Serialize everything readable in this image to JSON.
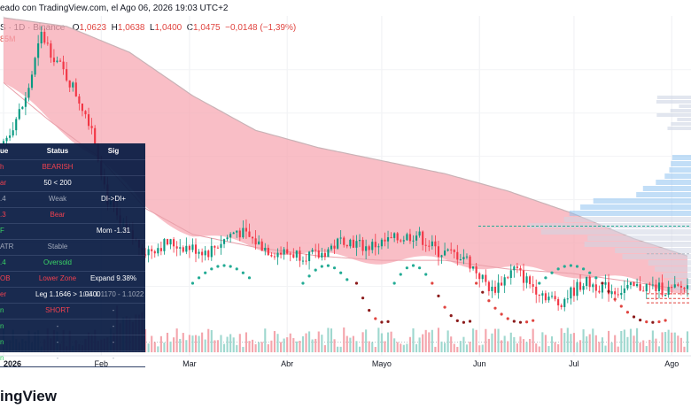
{
  "header": {
    "attribution": "eado con TradingView.com, el Ago 06, 2026 19:03 UTC+2"
  },
  "legend": {
    "symbol": "S · 1D · Binance",
    "open_label": "O",
    "open": "1,0623",
    "high_label": "H",
    "high": "1,0638",
    "low_label": "L",
    "low": "1,0400",
    "close_label": "C",
    "close": "1,0475",
    "change": "−0,0148 (−1,39%)",
    "volume": "85M"
  },
  "brand": "ingView",
  "colors": {
    "up": "#089981",
    "down": "#f23645",
    "cloud": "#f7a8b3",
    "cloud_edge": "#c9b2b6",
    "table_bg": "#0b1d45",
    "vol_up": "#9fd8cf",
    "vol_down": "#f4a5ac",
    "dot_green": "#22ab94",
    "dot_red": "#e0443f",
    "dot_dark": "#8b1a1a",
    "profile_blue": "#8fc3f0",
    "profile_gray": "#cfd6e4",
    "table_red": "#f23645",
    "table_green": "#2ed15c",
    "table_white": "#ffffff",
    "table_gray": "#9aa3b5"
  },
  "table": {
    "header": [
      "ue",
      "Status",
      "Sig"
    ],
    "rows": [
      {
        "c1": "h",
        "c2": "BEARISH",
        "c3": "",
        "col1": "red",
        "col2": "red",
        "col3": "white"
      },
      {
        "c1": "ar",
        "c2": "50 < 200",
        "c3": "",
        "col1": "red",
        "col2": "white",
        "col3": "white"
      },
      {
        "c1": ".4",
        "c2": "Weak",
        "c3": "DI->DI+",
        "col1": "gray",
        "col2": "gray",
        "col3": "white"
      },
      {
        "c1": ".3",
        "c2": "Bear",
        "c3": "",
        "col1": "red",
        "col2": "red",
        "col3": "white"
      },
      {
        "c1": "F",
        "c2": "",
        "c3": "Mom -1.31",
        "col1": "green",
        "col2": "white",
        "col3": "white"
      },
      {
        "c1": "ATR",
        "c2": "Stable",
        "c3": "",
        "col1": "gray",
        "col2": "gray",
        "col3": "white"
      },
      {
        "c1": ".4",
        "c2": "Oversold",
        "c3": "",
        "col1": "green",
        "col2": "green",
        "col3": "white"
      },
      {
        "c1": "OB",
        "c2": "Lower Zone",
        "c3": "Expand 9.38%",
        "col1": "red",
        "col2": "red",
        "col3": "white"
      },
      {
        "c1": "er",
        "c2": "Leg 1.1646 > 1.0400",
        "c3": "GZ 1.1170 - 1.1022",
        "col1": "red",
        "col2": "white",
        "col3": "gray"
      },
      {
        "c1": "n",
        "c2": "SHORT",
        "c3": "-",
        "col1": "green",
        "col2": "red",
        "col3": "gray"
      },
      {
        "c1": "n",
        "c2": "-",
        "c3": "-",
        "col1": "green",
        "col2": "gray",
        "col3": "gray"
      },
      {
        "c1": "n",
        "c2": "-",
        "c3": "-",
        "col1": "green",
        "col2": "gray",
        "col3": "gray"
      },
      {
        "c1": "n",
        "c2": "-",
        "c3": "-",
        "col1": "green",
        "col2": "gray",
        "col3": "gray"
      }
    ]
  },
  "chart_data": {
    "type": "candlestick",
    "title": "",
    "xlabel": "",
    "ylabel": "",
    "x_ticks": [
      "2026",
      "Feb",
      "Mar",
      "Abr",
      "Mayo",
      "Jun",
      "Jul",
      "Ago"
    ],
    "y_range_price": [
      0.95,
      1.62
    ],
    "y_axis_labels": "",
    "days": 218,
    "tick_day_index": [
      0,
      31,
      59,
      90,
      120,
      151,
      181,
      212
    ],
    "price_keyframes": [
      [
        0,
        1.33
      ],
      [
        7,
        1.43
      ],
      [
        12,
        1.58
      ],
      [
        16,
        1.53
      ],
      [
        22,
        1.46
      ],
      [
        28,
        1.37
      ],
      [
        33,
        1.2
      ],
      [
        37,
        1.14
      ],
      [
        45,
        1.08
      ],
      [
        52,
        1.1
      ],
      [
        65,
        1.08
      ],
      [
        74,
        1.13
      ],
      [
        85,
        1.08
      ],
      [
        100,
        1.07
      ],
      [
        108,
        1.11
      ],
      [
        115,
        1.09
      ],
      [
        125,
        1.11
      ],
      [
        131,
        1.12
      ],
      [
        138,
        1.08
      ],
      [
        146,
        1.07
      ],
      [
        155,
        0.99
      ],
      [
        162,
        1.04
      ],
      [
        168,
        1.0
      ],
      [
        176,
        0.96
      ],
      [
        184,
        1.01
      ],
      [
        194,
        0.99
      ],
      [
        204,
        1.0
      ],
      [
        212,
        0.99
      ],
      [
        217,
        1.0
      ]
    ],
    "cloud_upper_keyframes": [
      [
        0,
        1.62
      ],
      [
        20,
        1.6
      ],
      [
        40,
        1.54
      ],
      [
        60,
        1.44
      ],
      [
        80,
        1.36
      ],
      [
        100,
        1.32
      ],
      [
        120,
        1.29
      ],
      [
        140,
        1.26
      ],
      [
        160,
        1.22
      ],
      [
        180,
        1.17
      ],
      [
        200,
        1.11
      ],
      [
        217,
        1.07
      ]
    ],
    "cloud_lower_keyframes": [
      [
        0,
        1.47
      ],
      [
        15,
        1.38
      ],
      [
        30,
        1.3
      ],
      [
        45,
        1.18
      ],
      [
        60,
        1.12
      ],
      [
        80,
        1.09
      ],
      [
        100,
        1.07
      ],
      [
        120,
        1.06
      ],
      [
        140,
        1.06
      ],
      [
        160,
        1.04
      ],
      [
        180,
        1.03
      ],
      [
        200,
        1.01
      ],
      [
        217,
        0.99
      ]
    ],
    "horizontal_levels": [
      1.139,
      1.075,
      0.983,
      0.972,
      0.962
    ],
    "last_price": 1.0475
  }
}
